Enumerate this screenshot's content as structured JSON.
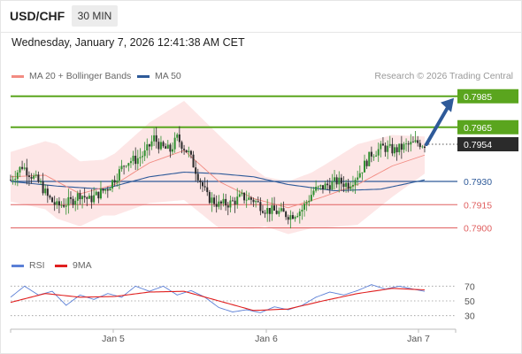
{
  "header": {
    "symbol": "USD/CHF",
    "interval": "30 MIN"
  },
  "subheader": {
    "datetime": "Wednesday, January 7, 2026 12:41:38 AM CET"
  },
  "legend": {
    "ma_bollinger": {
      "label": "MA 20 + Bollinger Bands",
      "color": "#f28b82"
    },
    "ma50": {
      "label": "MA 50",
      "color": "#2e5a99"
    },
    "credit": "Research © 2026 Trading Central"
  },
  "rsi_legend": {
    "rsi": {
      "label": "RSI",
      "color": "#5b7fd6"
    },
    "ma9": {
      "label": "9MA",
      "color": "#e02020"
    }
  },
  "colors": {
    "resistance": "#5aa51e",
    "support_pivot": "#2e5a99",
    "support": "#e06060",
    "bollinger_fill": "#fde2e2",
    "candle_up": "#2f8f2f",
    "candle_down": "#2a2a2a",
    "current_price_box": "#2b2b2b",
    "arrow": "#2e5a99"
  },
  "chart_data": {
    "type": "candlestick",
    "symbol": "USD/CHF",
    "timeframe": "30 MIN",
    "ylim": [
      0.789,
      0.799
    ],
    "x_ticks": [
      "Jan 5",
      "Jan 6",
      "Jan 7"
    ],
    "current_price": 0.7954,
    "levels": [
      {
        "value": 0.7985,
        "label": "0.7985",
        "kind": "resistance"
      },
      {
        "value": 0.7965,
        "label": "0.7965",
        "kind": "resistance"
      },
      {
        "value": 0.7954,
        "label": "0.7954",
        "kind": "current"
      },
      {
        "value": 0.793,
        "label": "0.7930",
        "kind": "pivot"
      },
      {
        "value": 0.7915,
        "label": "0.7915",
        "kind": "support"
      },
      {
        "value": 0.79,
        "label": "0.7900",
        "kind": "support"
      }
    ],
    "arrow": {
      "from": 0.7954,
      "to": 0.7985,
      "direction": "up"
    },
    "close_anchors": [
      [
        0,
        0.7931
      ],
      [
        5,
        0.794
      ],
      [
        9,
        0.7934
      ],
      [
        13,
        0.7928
      ],
      [
        16,
        0.792
      ],
      [
        20,
        0.7914
      ],
      [
        26,
        0.7917
      ],
      [
        30,
        0.7922
      ],
      [
        34,
        0.7918
      ],
      [
        38,
        0.7922
      ],
      [
        42,
        0.7926
      ],
      [
        46,
        0.7934
      ],
      [
        50,
        0.7943
      ],
      [
        54,
        0.7944
      ],
      [
        58,
        0.7948
      ],
      [
        62,
        0.7958
      ],
      [
        65,
        0.7952
      ],
      [
        69,
        0.795
      ],
      [
        72,
        0.7958
      ],
      [
        77,
        0.7948
      ],
      [
        81,
        0.7934
      ],
      [
        85,
        0.792
      ],
      [
        90,
        0.7915
      ],
      [
        95,
        0.7916
      ],
      [
        100,
        0.792
      ],
      [
        105,
        0.7918
      ],
      [
        110,
        0.7912
      ],
      [
        116,
        0.791
      ],
      [
        121,
        0.7908
      ],
      [
        126,
        0.7912
      ],
      [
        131,
        0.7924
      ],
      [
        136,
        0.7927
      ],
      [
        141,
        0.793
      ],
      [
        146,
        0.7928
      ],
      [
        151,
        0.7936
      ],
      [
        156,
        0.7948
      ],
      [
        161,
        0.7952
      ],
      [
        166,
        0.795
      ],
      [
        171,
        0.7953
      ],
      [
        176,
        0.7955
      ],
      [
        179,
        0.7954
      ]
    ],
    "ma20_anchors": [
      [
        0,
        0.7933
      ],
      [
        15,
        0.7934
      ],
      [
        30,
        0.7922
      ],
      [
        45,
        0.7928
      ],
      [
        60,
        0.7942
      ],
      [
        75,
        0.795
      ],
      [
        90,
        0.793
      ],
      [
        105,
        0.7919
      ],
      [
        120,
        0.7913
      ],
      [
        135,
        0.792
      ],
      [
        150,
        0.7928
      ],
      [
        165,
        0.794
      ],
      [
        179,
        0.7947
      ]
    ],
    "ma50_anchors": [
      [
        0,
        0.793
      ],
      [
        20,
        0.7927
      ],
      [
        40,
        0.7925
      ],
      [
        60,
        0.7933
      ],
      [
        75,
        0.7936
      ],
      [
        90,
        0.7935
      ],
      [
        105,
        0.7933
      ],
      [
        120,
        0.7928
      ],
      [
        140,
        0.7924
      ],
      [
        160,
        0.7925
      ],
      [
        179,
        0.7931
      ]
    ],
    "bollinger_width_anchors": [
      [
        0,
        0.0016
      ],
      [
        20,
        0.0024
      ],
      [
        40,
        0.0018
      ],
      [
        60,
        0.0026
      ],
      [
        75,
        0.0032
      ],
      [
        90,
        0.003
      ],
      [
        110,
        0.0016
      ],
      [
        130,
        0.0018
      ],
      [
        150,
        0.0026
      ],
      [
        165,
        0.002
      ],
      [
        179,
        0.0012
      ]
    ],
    "rsi": {
      "ylim": [
        20,
        80
      ],
      "ticks": [
        70,
        50,
        30
      ],
      "rsi_anchors": [
        [
          0,
          55
        ],
        [
          6,
          70
        ],
        [
          12,
          58
        ],
        [
          18,
          63
        ],
        [
          24,
          44
        ],
        [
          30,
          58
        ],
        [
          36,
          52
        ],
        [
          42,
          60
        ],
        [
          48,
          55
        ],
        [
          54,
          70
        ],
        [
          60,
          63
        ],
        [
          66,
          70
        ],
        [
          72,
          58
        ],
        [
          78,
          64
        ],
        [
          84,
          55
        ],
        [
          90,
          41
        ],
        [
          96,
          35
        ],
        [
          102,
          38
        ],
        [
          108,
          34
        ],
        [
          114,
          42
        ],
        [
          120,
          38
        ],
        [
          126,
          44
        ],
        [
          132,
          55
        ],
        [
          138,
          62
        ],
        [
          144,
          58
        ],
        [
          150,
          64
        ],
        [
          156,
          72
        ],
        [
          162,
          66
        ],
        [
          168,
          70
        ],
        [
          174,
          66
        ],
        [
          179,
          63
        ]
      ],
      "ma9_anchors": [
        [
          0,
          48
        ],
        [
          15,
          60
        ],
        [
          30,
          55
        ],
        [
          45,
          56
        ],
        [
          60,
          62
        ],
        [
          75,
          63
        ],
        [
          90,
          50
        ],
        [
          105,
          37
        ],
        [
          120,
          39
        ],
        [
          135,
          50
        ],
        [
          150,
          60
        ],
        [
          165,
          67
        ],
        [
          179,
          65
        ]
      ]
    }
  }
}
